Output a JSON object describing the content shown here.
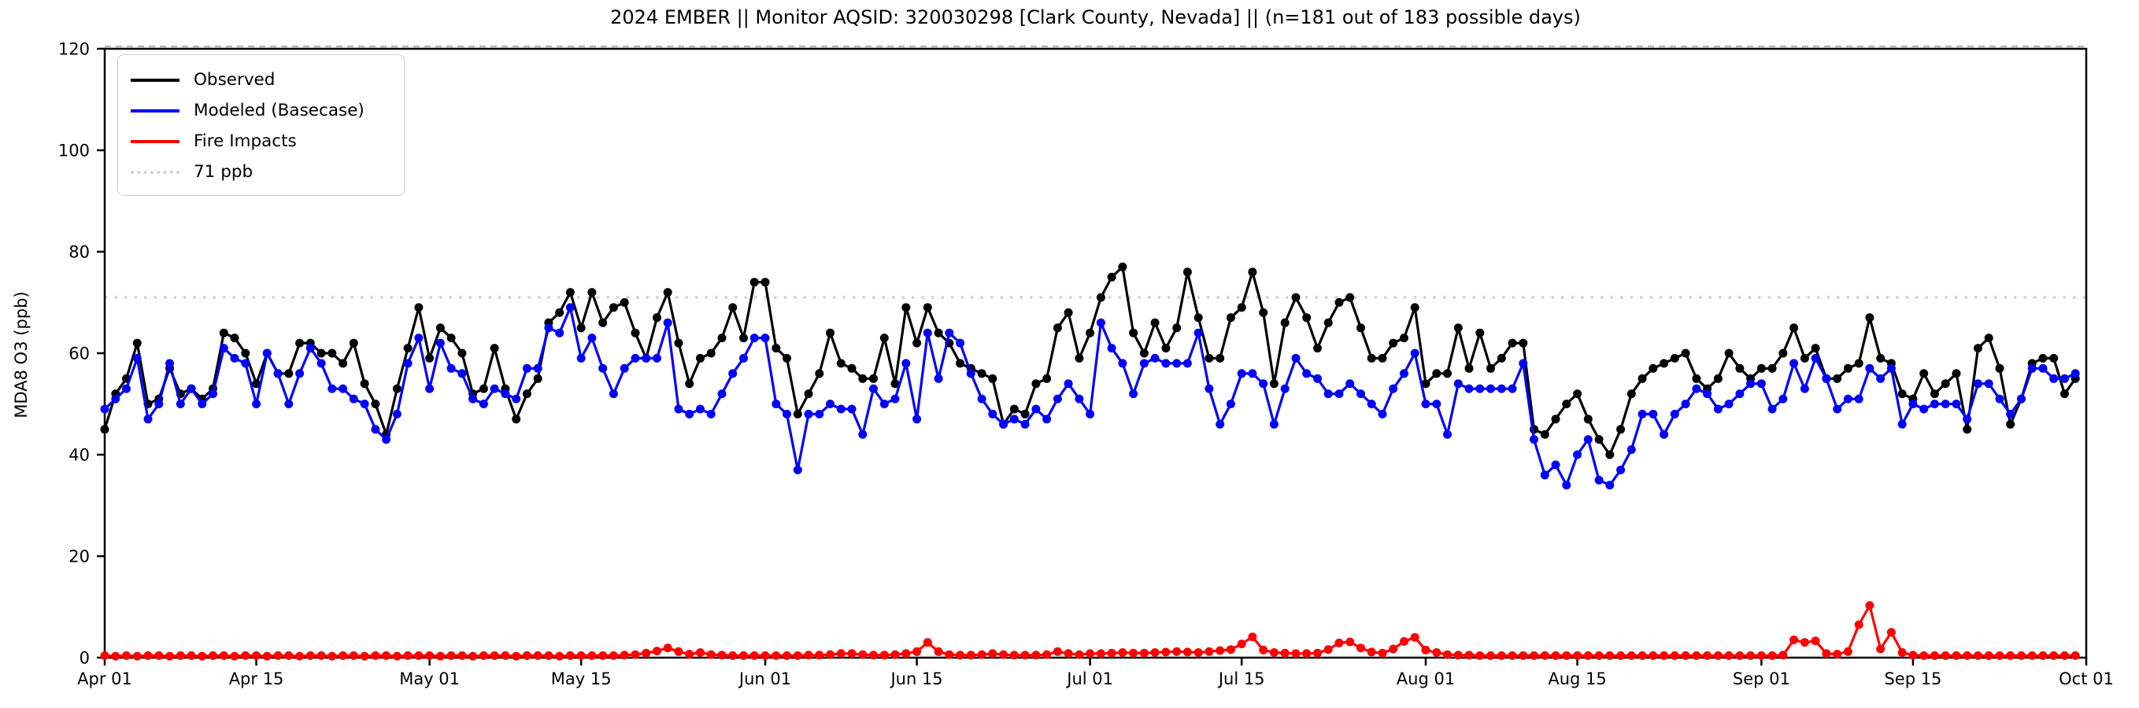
{
  "title": "2024 EMBER || Monitor AQSID: 320030298 [Clark County, Nevada] || (n=181 out of 183 possible days)",
  "y_axis": {
    "label": "MDA8 O3 (ppb)",
    "tick_labels": [
      "0",
      "20",
      "40",
      "60",
      "80",
      "100",
      "120"
    ],
    "tick_values": [
      0,
      20,
      40,
      60,
      80,
      100,
      120
    ]
  },
  "x_axis": {
    "tick_labels": [
      "Apr 01",
      "Apr 15",
      "May 01",
      "May 15",
      "Jun 01",
      "Jun 15",
      "Jul 01",
      "Jul 15",
      "Aug 01",
      "Aug 15",
      "Sep 01",
      "Sep 15",
      "Oct 01"
    ],
    "tick_days": [
      0,
      14,
      30,
      44,
      61,
      75,
      91,
      105,
      122,
      136,
      153,
      167,
      183
    ]
  },
  "legend": {
    "items": [
      {
        "label": "Observed",
        "color": "#000000",
        "style": "solid"
      },
      {
        "label": "Modeled (Basecase)",
        "color": "#0000ff",
        "style": "solid"
      },
      {
        "label": "Fire Impacts",
        "color": "#ff0000",
        "style": "solid"
      },
      {
        "label": "71 ppb",
        "color": "#d3d3d3",
        "style": "dotted"
      }
    ]
  },
  "chart_data": {
    "type": "line",
    "title": "2024 EMBER || Monitor AQSID: 320030298 [Clark County, Nevada] || (n=181 out of 183 possible days)",
    "ylabel": "MDA8 O3 (ppb)",
    "ylim": [
      0,
      120
    ],
    "x_start": "Apr 01",
    "x_end": "Sep 30",
    "n_days": 183,
    "threshold": {
      "label": "71 ppb",
      "value": 71,
      "color": "#d3d3d3"
    },
    "top_reference_value": 120,
    "series": [
      {
        "name": "Observed",
        "color": "#000000",
        "values": [
          45,
          52,
          55,
          62,
          50,
          51,
          57,
          52,
          53,
          51,
          53,
          64,
          63,
          60,
          54,
          60,
          56,
          56,
          62,
          62,
          60,
          60,
          58,
          62,
          54,
          50,
          44,
          53,
          61,
          69,
          59,
          65,
          63,
          60,
          52,
          53,
          61,
          53,
          47,
          52,
          55,
          66,
          68,
          72,
          65,
          72,
          66,
          69,
          70,
          64,
          59,
          67,
          72,
          62,
          54,
          59,
          60,
          63,
          69,
          63,
          74,
          74,
          61,
          59,
          48,
          52,
          56,
          64,
          58,
          57,
          55,
          55,
          63,
          54,
          69,
          62,
          69,
          64,
          62,
          58,
          57,
          56,
          55,
          46,
          49,
          48,
          54,
          55,
          65,
          68,
          59,
          64,
          71,
          75,
          77,
          64,
          60,
          66,
          61,
          65,
          76,
          67,
          59,
          59,
          67,
          69,
          76,
          68,
          54,
          66,
          71,
          67,
          61,
          66,
          70,
          71,
          65,
          59,
          59,
          62,
          63,
          69,
          54,
          56,
          56,
          65,
          57,
          64,
          57,
          59,
          62,
          62,
          45,
          44,
          47,
          50,
          52,
          47,
          43,
          40,
          45,
          52,
          55,
          57,
          58,
          59,
          60,
          55,
          53,
          55,
          60,
          57,
          55,
          57,
          57,
          60,
          65,
          59,
          61,
          55,
          55,
          57,
          58,
          67,
          59,
          58,
          52,
          51,
          56,
          52,
          54,
          56,
          45,
          61,
          63,
          57,
          46,
          51,
          58,
          59,
          59,
          52,
          55
        ]
      },
      {
        "name": "Modeled (Basecase)",
        "color": "#0000ff",
        "values": [
          49,
          51,
          53,
          59,
          47,
          50,
          58,
          50,
          53,
          50,
          52,
          61,
          59,
          58,
          50,
          60,
          56,
          50,
          56,
          61,
          58,
          53,
          53,
          51,
          50,
          45,
          43,
          48,
          58,
          63,
          53,
          62,
          57,
          56,
          51,
          50,
          53,
          52,
          51,
          57,
          57,
          65,
          64,
          69,
          59,
          63,
          57,
          52,
          57,
          59,
          59,
          59,
          66,
          49,
          48,
          49,
          48,
          52,
          56,
          59,
          63,
          63,
          50,
          48,
          37,
          48,
          48,
          50,
          49,
          49,
          44,
          53,
          50,
          51,
          58,
          47,
          64,
          55,
          64,
          62,
          56,
          51,
          48,
          46,
          47,
          46,
          49,
          47,
          51,
          54,
          51,
          48,
          66,
          61,
          58,
          52,
          58,
          59,
          58,
          58,
          58,
          64,
          53,
          46,
          50,
          56,
          56,
          54,
          46,
          53,
          59,
          56,
          55,
          52,
          52,
          54,
          52,
          50,
          48,
          53,
          56,
          60,
          50,
          50,
          44,
          54,
          53,
          53,
          53,
          53,
          53,
          58,
          43,
          36,
          38,
          34,
          40,
          43,
          35,
          34,
          37,
          41,
          48,
          48,
          44,
          48,
          50,
          53,
          52,
          49,
          50,
          52,
          54,
          54,
          49,
          51,
          58,
          53,
          59,
          55,
          49,
          51,
          51,
          57,
          55,
          57,
          46,
          50,
          49,
          50,
          50,
          50,
          47,
          54,
          54,
          51,
          48,
          51,
          57,
          57,
          55,
          55,
          56
        ]
      },
      {
        "name": "Fire Impacts",
        "color": "#ff0000",
        "values": [
          0.4,
          0.3,
          0.4,
          0.3,
          0.4,
          0.4,
          0.3,
          0.4,
          0.4,
          0.3,
          0.4,
          0.4,
          0.3,
          0.4,
          0.4,
          0.3,
          0.4,
          0.4,
          0.3,
          0.4,
          0.4,
          0.3,
          0.4,
          0.4,
          0.3,
          0.4,
          0.4,
          0.3,
          0.4,
          0.4,
          0.4,
          0.3,
          0.4,
          0.4,
          0.3,
          0.4,
          0.4,
          0.4,
          0.3,
          0.4,
          0.4,
          0.4,
          0.3,
          0.4,
          0.4,
          0.4,
          0.4,
          0.4,
          0.5,
          0.6,
          0.9,
          1.3,
          1.9,
          1.2,
          0.7,
          1.0,
          0.6,
          0.5,
          0.4,
          0.4,
          0.4,
          0.4,
          0.4,
          0.4,
          0.4,
          0.5,
          0.5,
          0.6,
          0.8,
          0.8,
          0.6,
          0.5,
          0.5,
          0.6,
          0.8,
          1.2,
          3.0,
          1.2,
          0.6,
          0.5,
          0.5,
          0.6,
          0.8,
          0.6,
          0.5,
          0.5,
          0.5,
          0.6,
          1.2,
          0.8,
          0.6,
          0.8,
          0.8,
          0.9,
          1.0,
          0.9,
          0.9,
          1.0,
          1.1,
          1.2,
          1.1,
          1.0,
          1.2,
          1.4,
          1.6,
          2.7,
          4.1,
          1.5,
          1.0,
          0.9,
          0.8,
          0.8,
          0.9,
          1.6,
          2.9,
          3.1,
          1.9,
          1.1,
          0.9,
          1.7,
          3.2,
          4.0,
          1.5,
          1.0,
          0.6,
          0.5,
          0.5,
          0.4,
          0.4,
          0.4,
          0.4,
          0.4,
          0.4,
          0.4,
          0.4,
          0.4,
          0.4,
          0.4,
          0.4,
          0.4,
          0.4,
          0.4,
          0.4,
          0.4,
          0.4,
          0.4,
          0.4,
          0.4,
          0.4,
          0.4,
          0.4,
          0.4,
          0.4,
          0.4,
          0.4,
          0.5,
          3.5,
          3.0,
          3.3,
          0.8,
          0.7,
          1.2,
          6.5,
          10.3,
          1.7,
          5.0,
          1.0,
          0.5,
          0.4,
          0.4,
          0.4,
          0.4,
          0.4,
          0.4,
          0.4,
          0.4,
          0.4,
          0.4,
          0.4,
          0.4,
          0.4,
          0.4,
          0.4
        ]
      }
    ]
  }
}
